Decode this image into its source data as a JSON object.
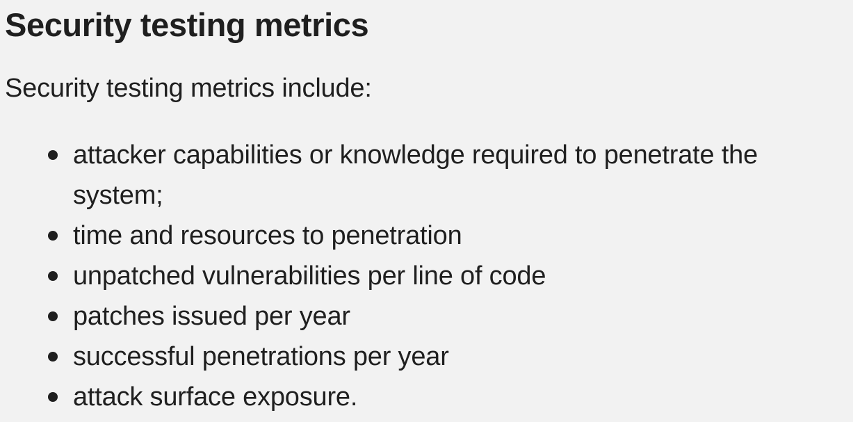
{
  "slide": {
    "title": "Security testing metrics",
    "intro": "Security testing metrics include:",
    "items": [
      {
        "text": "attacker capabilities or knowledge required to penetrate the system;"
      },
      {
        "text": "time and resources to penetration"
      },
      {
        "text": "unpatched vulnerabilities per line of code"
      },
      {
        "text": "patches issued per year"
      },
      {
        "text": "successful penetrations per year"
      },
      {
        "text": "attack surface exposure."
      }
    ]
  },
  "colors": {
    "background": "#f2f2f2",
    "text": "#1f1f1f"
  }
}
